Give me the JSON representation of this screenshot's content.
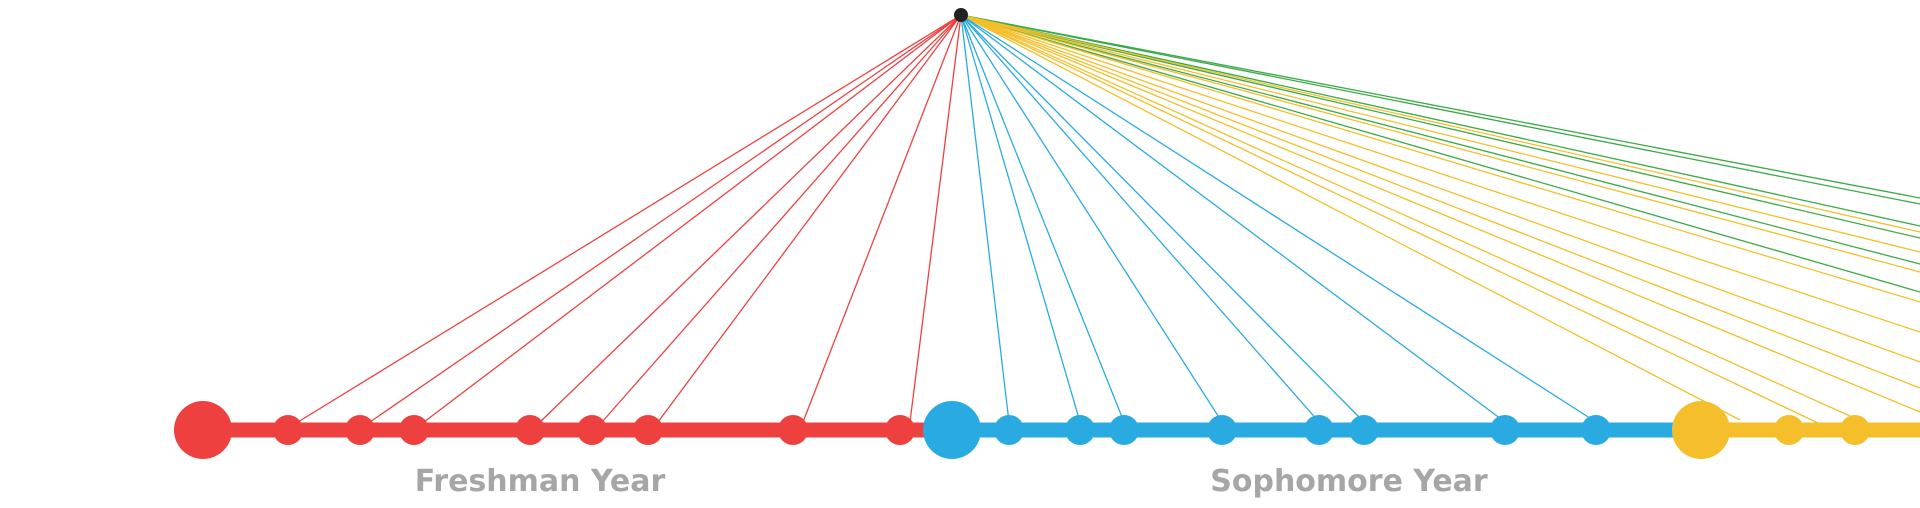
{
  "labels": {
    "freshman": "Freshman Year",
    "sophomore": "Sophomore Year"
  },
  "colors": {
    "freshman": "#ef4040",
    "sophomore": "#29abe2",
    "junior": "#f4bf2a",
    "senior": "#3aaa46",
    "hub": "#222222",
    "label": "#a6a6a6"
  }
}
